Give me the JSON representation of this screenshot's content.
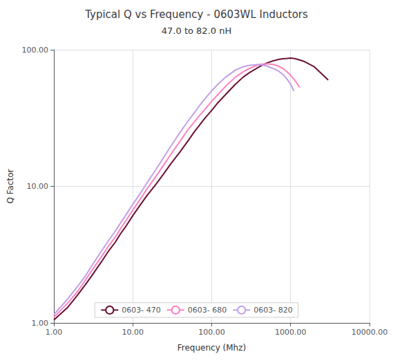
{
  "chart_data": {
    "type": "line",
    "title": "Typical Q vs Frequency - 0603WL Inductors",
    "subtitle": "47.0 to 82.0 nH",
    "x_label": "Frequency (Mhz)",
    "y_label": "Q Factor",
    "log": true,
    "xlim": [
      1.0,
      10000.0
    ],
    "ylim": [
      1.0,
      100.0
    ],
    "xticks": [
      {
        "value": 1,
        "label": "1.00"
      },
      {
        "value": 10,
        "label": "10.00"
      },
      {
        "value": 100,
        "label": "100.00"
      },
      {
        "value": 1000,
        "label": "1000.00"
      },
      {
        "value": 10000,
        "label": "10000.00"
      }
    ],
    "yticks": [
      {
        "value": 1,
        "label": "1.00"
      },
      {
        "value": 10,
        "label": "10.00"
      },
      {
        "value": 100,
        "label": "100.00"
      }
    ],
    "grid": true,
    "legend": "lower center",
    "series": [
      {
        "name": "0603- 470",
        "color": "#6B1030",
        "x": [
          1.0,
          1.5,
          2.0,
          2.5,
          3.0,
          4.0,
          5.0,
          6.0,
          7.0,
          8.0,
          10.0,
          12.0,
          15.0,
          20.0,
          25.0,
          30.0,
          40.0,
          50.0,
          60.0,
          70.0,
          80.0,
          100.0,
          120.0,
          150.0,
          200.0,
          250.0,
          300.0,
          400.0,
          500.0,
          600.0,
          700.0,
          800.0,
          900.0,
          1000.0,
          1100.0,
          1200.0,
          1500.0,
          2000.0,
          3000.0
        ],
        "values": [
          1.05,
          1.3,
          1.6,
          1.9,
          2.2,
          2.8,
          3.4,
          3.9,
          4.5,
          5.0,
          6.1,
          7.1,
          8.5,
          10.5,
          12.5,
          14.5,
          18.0,
          21.5,
          25.0,
          28.0,
          31.0,
          36.0,
          41.0,
          47.0,
          56.0,
          63.0,
          68.0,
          75.0,
          80.0,
          83.0,
          85.0,
          86.0,
          86.5,
          87.0,
          86.5,
          85.5,
          82.0,
          75.0,
          60.0
        ]
      },
      {
        "name": "0603- 680",
        "color": "#FF80C0",
        "x": [
          1.0,
          1.5,
          2.0,
          2.5,
          3.0,
          4.0,
          5.0,
          6.0,
          7.0,
          8.0,
          10.0,
          12.0,
          15.0,
          20.0,
          25.0,
          30.0,
          40.0,
          50.0,
          60.0,
          70.0,
          80.0,
          100.0,
          120.0,
          150.0,
          200.0,
          250.0,
          300.0,
          400.0,
          500.0,
          600.0,
          700.0,
          800.0,
          900.0,
          1000.0,
          1100.0,
          1200.0,
          1300.0
        ],
        "values": [
          1.1,
          1.4,
          1.7,
          2.05,
          2.4,
          3.05,
          3.7,
          4.25,
          4.9,
          5.5,
          6.7,
          7.8,
          9.5,
          12.0,
          14.5,
          17.0,
          21.5,
          26.0,
          29.5,
          33.0,
          36.0,
          42.0,
          47.0,
          54.0,
          63.0,
          69.0,
          73.0,
          78.0,
          79.0,
          78.0,
          76.0,
          73.0,
          69.0,
          65.0,
          61.0,
          57.0,
          53.0
        ]
      },
      {
        "name": "0603- 820",
        "color": "#C0A0E8",
        "x": [
          1.0,
          1.5,
          2.0,
          2.5,
          3.0,
          4.0,
          5.0,
          6.0,
          7.0,
          8.0,
          10.0,
          12.0,
          15.0,
          20.0,
          25.0,
          30.0,
          40.0,
          50.0,
          60.0,
          70.0,
          80.0,
          100.0,
          120.0,
          150.0,
          200.0,
          250.0,
          300.0,
          400.0,
          500.0,
          600.0,
          700.0,
          800.0,
          900.0,
          1000.0,
          1100.0
        ],
        "values": [
          1.15,
          1.5,
          1.85,
          2.2,
          2.6,
          3.35,
          4.05,
          4.7,
          5.4,
          6.05,
          7.4,
          8.6,
          10.5,
          13.5,
          16.5,
          19.5,
          25.0,
          30.0,
          34.5,
          39.0,
          43.0,
          50.0,
          56.0,
          63.0,
          71.0,
          75.0,
          77.0,
          78.0,
          76.0,
          73.0,
          70.0,
          66.0,
          61.0,
          56.0,
          50.0
        ]
      }
    ]
  }
}
